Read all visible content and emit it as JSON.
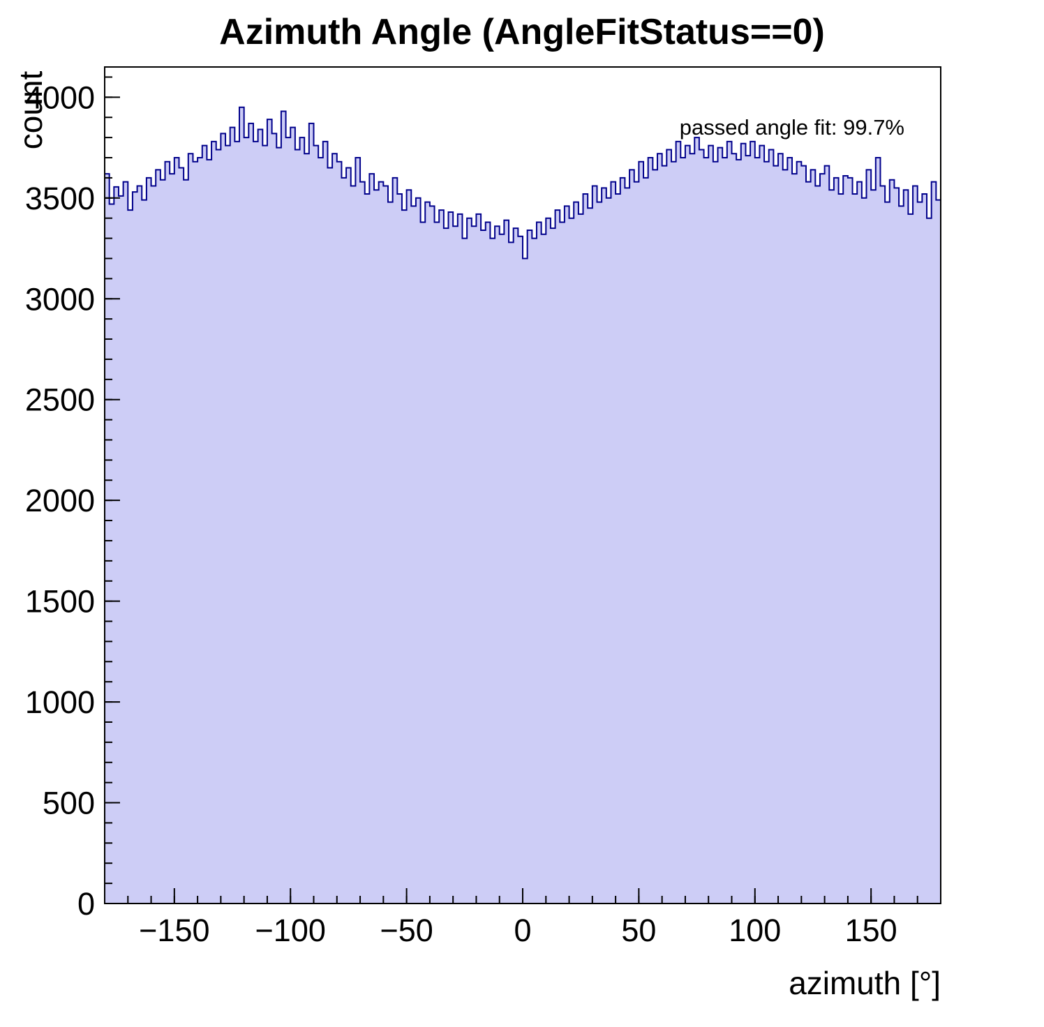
{
  "title": "Azimuth Angle (AngleFitStatus==0)",
  "annotation": "passed angle fit: 99.7%",
  "chart_data": {
    "type": "bar",
    "subtype": "histogram",
    "title": "Azimuth Angle (AngleFitStatus==0)",
    "xlabel": "azimuth [°]",
    "ylabel": "count",
    "xlim": [
      -180,
      180
    ],
    "ylim": [
      0,
      4150
    ],
    "bin_width": 2,
    "grid": false,
    "legend": "none",
    "fill_color": "#cdcdf6",
    "line_color": "#00008b",
    "axis_color": "#000000",
    "xticks": [
      {
        "value": -150,
        "label": "−150"
      },
      {
        "value": -100,
        "label": "−100"
      },
      {
        "value": -50,
        "label": "−50"
      },
      {
        "value": 0,
        "label": "0"
      },
      {
        "value": 50,
        "label": "50"
      },
      {
        "value": 100,
        "label": "100"
      },
      {
        "value": 150,
        "label": "150"
      }
    ],
    "yticks": [
      {
        "value": 0,
        "label": "0"
      },
      {
        "value": 500,
        "label": "500"
      },
      {
        "value": 1000,
        "label": "1000"
      },
      {
        "value": 1500,
        "label": "1500"
      },
      {
        "value": 2000,
        "label": "2000"
      },
      {
        "value": 2500,
        "label": "2500"
      },
      {
        "value": 3000,
        "label": "3000"
      },
      {
        "value": 3500,
        "label": "3500"
      },
      {
        "value": 4000,
        "label": "4000"
      }
    ],
    "minor_tick_step_x": 10,
    "minor_tick_step_y": 100,
    "values": [
      3620,
      3470,
      3555,
      3510,
      3580,
      3440,
      3530,
      3560,
      3490,
      3600,
      3560,
      3640,
      3590,
      3680,
      3620,
      3700,
      3650,
      3590,
      3720,
      3680,
      3700,
      3760,
      3690,
      3780,
      3740,
      3820,
      3760,
      3850,
      3780,
      3950,
      3800,
      3870,
      3780,
      3840,
      3760,
      3890,
      3820,
      3750,
      3930,
      3800,
      3850,
      3740,
      3800,
      3720,
      3870,
      3760,
      3700,
      3780,
      3650,
      3720,
      3680,
      3600,
      3650,
      3560,
      3700,
      3580,
      3520,
      3620,
      3540,
      3580,
      3560,
      3480,
      3600,
      3520,
      3440,
      3540,
      3460,
      3500,
      3380,
      3480,
      3460,
      3380,
      3440,
      3350,
      3430,
      3360,
      3420,
      3300,
      3400,
      3360,
      3420,
      3340,
      3380,
      3300,
      3360,
      3320,
      3390,
      3280,
      3350,
      3310,
      3200,
      3340,
      3300,
      3380,
      3320,
      3400,
      3350,
      3440,
      3380,
      3460,
      3400,
      3480,
      3420,
      3520,
      3450,
      3560,
      3480,
      3550,
      3500,
      3580,
      3520,
      3600,
      3550,
      3640,
      3580,
      3680,
      3600,
      3700,
      3640,
      3720,
      3660,
      3740,
      3680,
      3780,
      3700,
      3760,
      3720,
      3800,
      3740,
      3700,
      3760,
      3680,
      3750,
      3700,
      3780,
      3720,
      3690,
      3770,
      3710,
      3780,
      3700,
      3760,
      3680,
      3740,
      3660,
      3720,
      3640,
      3700,
      3620,
      3680,
      3660,
      3580,
      3640,
      3560,
      3620,
      3660,
      3540,
      3600,
      3520,
      3610,
      3600,
      3520,
      3580,
      3500,
      3640,
      3540,
      3700,
      3560,
      3480,
      3590,
      3550,
      3460,
      3540,
      3420,
      3560,
      3480,
      3520,
      3400,
      3580,
      3490
    ]
  }
}
